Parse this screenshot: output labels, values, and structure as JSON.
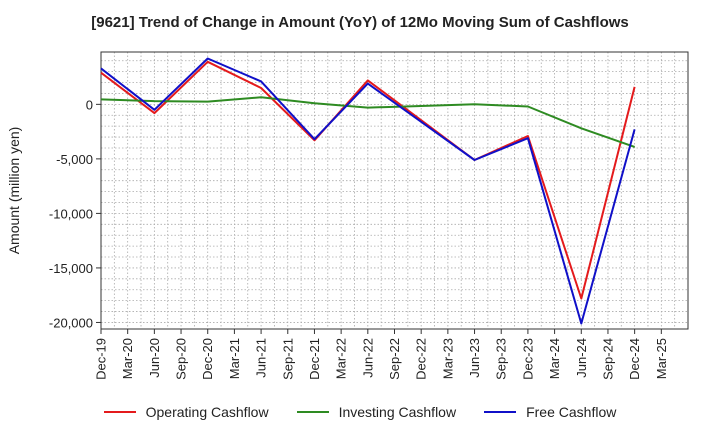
{
  "chart_data": {
    "type": "line",
    "title": "[9621]  Trend of Change in Amount (YoY) of 12Mo Moving Sum of Cashflows",
    "xlabel": "",
    "ylabel": "Amount (million yen)",
    "categories": [
      "Dec-19",
      "Mar-20",
      "Jun-20",
      "Sep-20",
      "Dec-20",
      "Mar-21",
      "Jun-21",
      "Sep-21",
      "Dec-21",
      "Mar-22",
      "Jun-22",
      "Sep-22",
      "Dec-22",
      "Mar-23",
      "Jun-23",
      "Sep-23",
      "Dec-23",
      "Mar-24",
      "Jun-24",
      "Sep-24",
      "Dec-24",
      "Mar-25"
    ],
    "yticks": [
      0,
      -5000,
      -10000,
      -15000,
      -20000
    ],
    "ytick_labels": [
      "0",
      "-5,000",
      "-10,000",
      "-15,000",
      "-20,000"
    ],
    "ylim": [
      -20600,
      4800
    ],
    "grid": true,
    "legend_position": "bottom",
    "series": [
      {
        "name": "Operating Cashflow",
        "color": "#e41a1c",
        "values": [
          2900,
          null,
          -800,
          null,
          3900,
          null,
          1500,
          null,
          -3300,
          null,
          2200,
          null,
          null,
          null,
          -5100,
          null,
          -2900,
          null,
          -17800,
          null,
          1600,
          null
        ]
      },
      {
        "name": "Investing Cashflow",
        "color": "#2e8b22",
        "values": [
          450,
          null,
          300,
          null,
          250,
          null,
          650,
          null,
          100,
          null,
          -300,
          null,
          -150,
          null,
          0,
          null,
          -200,
          null,
          -2200,
          null,
          -3900,
          null
        ]
      },
      {
        "name": "Free Cashflow",
        "color": "#1010c8",
        "values": [
          3300,
          null,
          -500,
          null,
          4200,
          null,
          2100,
          null,
          -3200,
          null,
          1900,
          null,
          null,
          null,
          -5100,
          null,
          -3100,
          null,
          -20100,
          null,
          -2300,
          null
        ]
      }
    ]
  }
}
